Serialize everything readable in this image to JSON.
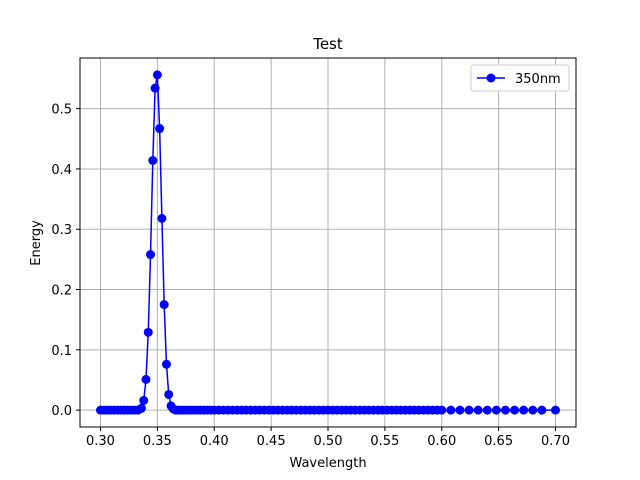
{
  "chart_data": {
    "type": "line",
    "title": "Test",
    "xlabel": "Wavelength",
    "ylabel": "Energy",
    "xlim": [
      0.282,
      0.718
    ],
    "ylim": [
      -0.028,
      0.584
    ],
    "xticks": [
      0.3,
      0.35,
      0.4,
      0.45,
      0.5,
      0.55,
      0.6,
      0.65,
      0.7
    ],
    "xtick_labels": [
      "0.30",
      "0.35",
      "0.40",
      "0.45",
      "0.50",
      "0.55",
      "0.60",
      "0.65",
      "0.70"
    ],
    "yticks": [
      0.0,
      0.1,
      0.2,
      0.3,
      0.4,
      0.5
    ],
    "ytick_labels": [
      "0.0",
      "0.1",
      "0.2",
      "0.3",
      "0.4",
      "0.5"
    ],
    "grid": true,
    "legend_position": "top-right",
    "series": [
      {
        "name": "350nm",
        "color": "#0000ff",
        "marker": "circle",
        "x": [
          0.3,
          0.303,
          0.306,
          0.309,
          0.312,
          0.315,
          0.318,
          0.321,
          0.324,
          0.327,
          0.33,
          0.333,
          0.336,
          0.338,
          0.34,
          0.342,
          0.344,
          0.346,
          0.348,
          0.35,
          0.352,
          0.354,
          0.356,
          0.358,
          0.36,
          0.362,
          0.364,
          0.366,
          0.368,
          0.37,
          0.373,
          0.376,
          0.379,
          0.382,
          0.385,
          0.388,
          0.391,
          0.394,
          0.397,
          0.4,
          0.404,
          0.408,
          0.412,
          0.416,
          0.42,
          0.424,
          0.428,
          0.432,
          0.436,
          0.44,
          0.444,
          0.448,
          0.452,
          0.456,
          0.46,
          0.464,
          0.468,
          0.472,
          0.476,
          0.48,
          0.484,
          0.488,
          0.492,
          0.496,
          0.5,
          0.504,
          0.508,
          0.512,
          0.516,
          0.52,
          0.524,
          0.528,
          0.532,
          0.536,
          0.54,
          0.544,
          0.548,
          0.552,
          0.556,
          0.56,
          0.564,
          0.568,
          0.572,
          0.576,
          0.58,
          0.584,
          0.588,
          0.592,
          0.596,
          0.6,
          0.608,
          0.616,
          0.624,
          0.632,
          0.64,
          0.648,
          0.656,
          0.664,
          0.672,
          0.68,
          0.688,
          0.7
        ],
        "y": [
          0.0,
          0.0,
          0.0,
          0.0,
          0.0,
          0.0,
          0.0,
          0.0,
          0.0,
          0.0,
          0.0,
          0.0,
          0.003,
          0.016,
          0.051,
          0.129,
          0.258,
          0.414,
          0.534,
          0.556,
          0.467,
          0.318,
          0.175,
          0.076,
          0.026,
          0.007,
          0.002,
          0.0,
          0.0,
          0.0,
          0.0,
          0.0,
          0.0,
          0.0,
          0.0,
          0.0,
          0.0,
          0.0,
          0.0,
          0.0,
          0.0,
          0.0,
          0.0,
          0.0,
          0.0,
          0.0,
          0.0,
          0.0,
          0.0,
          0.0,
          0.0,
          0.0,
          0.0,
          0.0,
          0.0,
          0.0,
          0.0,
          0.0,
          0.0,
          0.0,
          0.0,
          0.0,
          0.0,
          0.0,
          0.0,
          0.0,
          0.0,
          0.0,
          0.0,
          0.0,
          0.0,
          0.0,
          0.0,
          0.0,
          0.0,
          0.0,
          0.0,
          0.0,
          0.0,
          0.0,
          0.0,
          0.0,
          0.0,
          0.0,
          0.0,
          0.0,
          0.0,
          0.0,
          0.0,
          0.0,
          0.0,
          0.0,
          0.0,
          0.0,
          0.0,
          0.0,
          0.0,
          0.0,
          0.0,
          0.0,
          0.0,
          0.0
        ]
      }
    ]
  }
}
